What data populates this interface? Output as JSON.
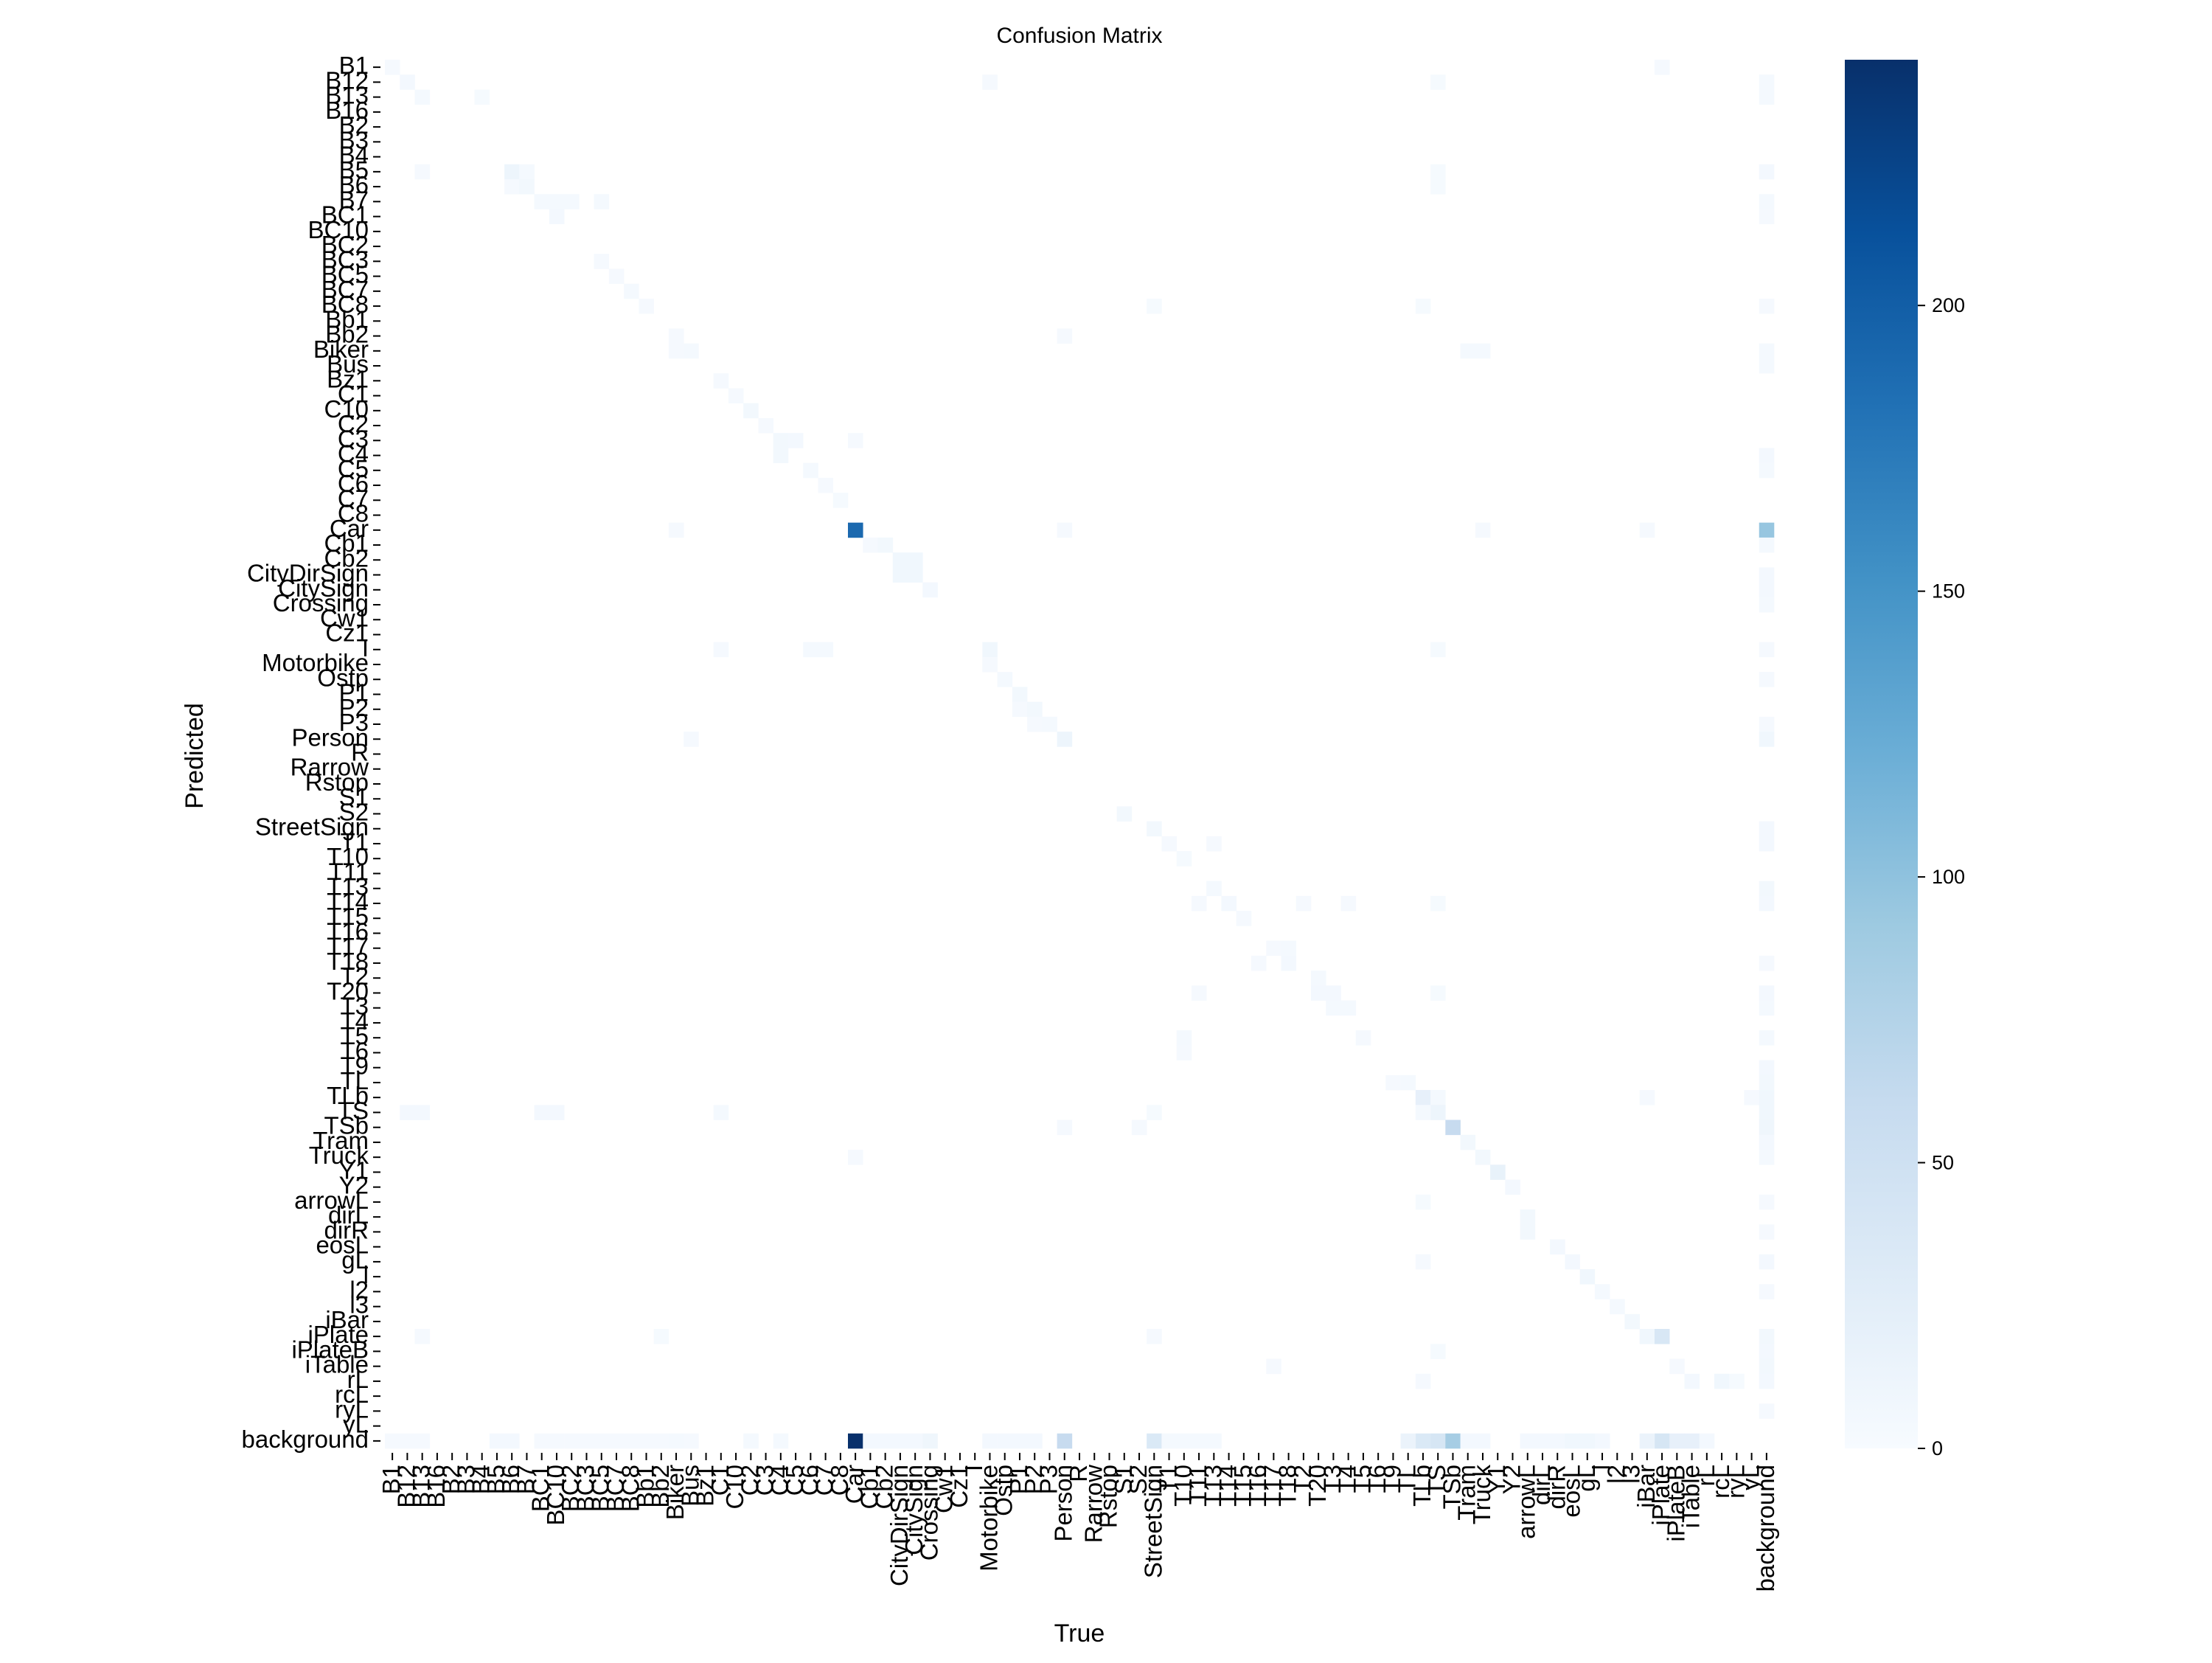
{
  "chart_data": {
    "type": "heatmap",
    "title": "Confusion Matrix",
    "xlabel": "True",
    "ylabel": "Predicted",
    "labels": [
      "B1",
      "B12",
      "B13",
      "B16",
      "B2",
      "B3",
      "B4",
      "B5",
      "B6",
      "B7",
      "BC1",
      "BC10",
      "BC2",
      "BC3",
      "BC5",
      "BC7",
      "BC8",
      "Bb1",
      "Bb2",
      "Biker",
      "Bus",
      "Bz1",
      "C1",
      "C10",
      "C2",
      "C3",
      "C4",
      "C5",
      "C6",
      "C7",
      "C8",
      "Car",
      "Cb1",
      "Cb2",
      "CityDirSign",
      "CitySign",
      "Crossing",
      "Cw1",
      "Cz1",
      "I",
      "Motorbike",
      "Ostp",
      "P1",
      "P2",
      "P3",
      "Person",
      "R",
      "Rarrow",
      "Rstop",
      "S1",
      "S2",
      "StreetSign",
      "T1",
      "T10",
      "T11",
      "T13",
      "T14",
      "T15",
      "T16",
      "T17",
      "T18",
      "T2",
      "T20",
      "T3",
      "T4",
      "T5",
      "T6",
      "T9",
      "TL",
      "TLb",
      "TS",
      "TSb",
      "Tram",
      "Truck",
      "Y1",
      "Y2",
      "arrowL",
      "dirL",
      "dirR",
      "eosL",
      "gL",
      "l",
      "l2",
      "l3",
      "iBar",
      "iPlate",
      "iPlateB",
      "iTable",
      "rL",
      "rcL",
      "ryL",
      "yL",
      "background"
    ],
    "colorbar": {
      "ticks": [
        0,
        50,
        100,
        150,
        200
      ],
      "vmin": 0,
      "vmax": 243
    },
    "colors": {
      "low": "#f7fbff",
      "high": "#08306b"
    },
    "cells": [
      [
        "B1",
        "B1",
        3
      ],
      [
        "B1",
        "iPlate",
        3
      ],
      [
        "B12",
        "B12",
        5
      ],
      [
        "B12",
        "Motorbike",
        3
      ],
      [
        "B12",
        "TS",
        2
      ],
      [
        "B13",
        "B13",
        4
      ],
      [
        "B13",
        "B4",
        2
      ],
      [
        "B5",
        "B13",
        3
      ],
      [
        "B5",
        "B6",
        12
      ],
      [
        "B5",
        "B7",
        4
      ],
      [
        "B5",
        "TS",
        2
      ],
      [
        "B6",
        "B6",
        3
      ],
      [
        "B6",
        "B7",
        6
      ],
      [
        "B6",
        "TS",
        2
      ],
      [
        "B7",
        "BC1",
        4
      ],
      [
        "B7",
        "BC10",
        4
      ],
      [
        "B7",
        "BC2",
        4
      ],
      [
        "B7",
        "BC5",
        4
      ],
      [
        "BC1",
        "BC10",
        5
      ],
      [
        "BC3",
        "BC5",
        3
      ],
      [
        "BC5",
        "BC7",
        3
      ],
      [
        "BC7",
        "BC8",
        4
      ],
      [
        "BC8",
        "Bb1",
        3
      ],
      [
        "BC8",
        "StreetSign",
        2
      ],
      [
        "BC8",
        "TLb",
        2
      ],
      [
        "Bb2",
        "Biker",
        3
      ],
      [
        "Bb2",
        "Person",
        3
      ],
      [
        "Biker",
        "Biker",
        3
      ],
      [
        "Biker",
        "Bus",
        4
      ],
      [
        "Biker",
        "Tram",
        4
      ],
      [
        "Biker",
        "Truck",
        4
      ],
      [
        "Bz1",
        "C1",
        3
      ],
      [
        "C1",
        "C10",
        3
      ],
      [
        "C10",
        "C2",
        6
      ],
      [
        "C2",
        "C3",
        3
      ],
      [
        "C3",
        "C4",
        6
      ],
      [
        "C3",
        "C5",
        5
      ],
      [
        "C3",
        "Car",
        3
      ],
      [
        "C4",
        "C4",
        6
      ],
      [
        "C5",
        "C6",
        4
      ],
      [
        "C6",
        "C7",
        3
      ],
      [
        "C7",
        "C8",
        2
      ],
      [
        "Car",
        "Biker",
        3
      ],
      [
        "Car",
        "Car",
        190
      ],
      [
        "Car",
        "Person",
        3
      ],
      [
        "Car",
        "Truck",
        3
      ],
      [
        "Car",
        "iBar",
        3
      ],
      [
        "Car",
        "background",
        95
      ],
      [
        "Cb1",
        "Cb1",
        3
      ],
      [
        "Cb1",
        "Cb2",
        6
      ],
      [
        "Cb2",
        "CityDirSign",
        8
      ],
      [
        "Cb2",
        "CitySign",
        8
      ],
      [
        "CityDirSign",
        "CityDirSign",
        8
      ],
      [
        "CityDirSign",
        "CitySign",
        8
      ],
      [
        "CitySign",
        "Crossing",
        5
      ],
      [
        "I",
        "C1",
        3
      ],
      [
        "I",
        "C6",
        4
      ],
      [
        "I",
        "C7",
        4
      ],
      [
        "I",
        "Motorbike",
        8
      ],
      [
        "I",
        "TS",
        2
      ],
      [
        "Motorbike",
        "Motorbike",
        3
      ],
      [
        "Ostp",
        "Ostp",
        4
      ],
      [
        "P1",
        "P1",
        6
      ],
      [
        "P2",
        "P1",
        3
      ],
      [
        "P2",
        "P2",
        6
      ],
      [
        "P3",
        "P2",
        3
      ],
      [
        "P3",
        "P3",
        4
      ],
      [
        "Person",
        "Bus",
        3
      ],
      [
        "Person",
        "Person",
        12
      ],
      [
        "S2",
        "S1",
        6
      ],
      [
        "StreetSign",
        "StreetSign",
        6
      ],
      [
        "T1",
        "T1",
        3
      ],
      [
        "T1",
        "T13",
        3
      ],
      [
        "T10",
        "T10",
        2
      ],
      [
        "T13",
        "T13",
        4
      ],
      [
        "T14",
        "T11",
        3
      ],
      [
        "T14",
        "T14",
        5
      ],
      [
        "T14",
        "T2",
        3
      ],
      [
        "T14",
        "T4",
        3
      ],
      [
        "T14",
        "TS",
        2
      ],
      [
        "T15",
        "T15",
        3
      ],
      [
        "T17",
        "T17",
        3
      ],
      [
        "T17",
        "T18",
        4
      ],
      [
        "T18",
        "T16",
        3
      ],
      [
        "T18",
        "T18",
        5
      ],
      [
        "T2",
        "T20",
        4
      ],
      [
        "T20",
        "T11",
        3
      ],
      [
        "T20",
        "T20",
        5
      ],
      [
        "T20",
        "T3",
        5
      ],
      [
        "T20",
        "TS",
        2
      ],
      [
        "T3",
        "T3",
        4
      ],
      [
        "T3",
        "T4",
        4
      ],
      [
        "T5",
        "T10",
        4
      ],
      [
        "T5",
        "T5",
        3
      ],
      [
        "T6",
        "T10",
        3
      ],
      [
        "TL",
        "TL",
        4
      ],
      [
        "TL",
        "T9",
        3
      ],
      [
        "TLb",
        "TLb",
        20
      ],
      [
        "TLb",
        "TS",
        4
      ],
      [
        "TLb",
        "iBar",
        3
      ],
      [
        "TLb",
        "yL",
        3
      ],
      [
        "TS",
        "TS",
        12
      ],
      [
        "TS",
        "TLb",
        4
      ],
      [
        "TS",
        "B12",
        5
      ],
      [
        "TS",
        "B13",
        5
      ],
      [
        "TS",
        "BC1",
        5
      ],
      [
        "TS",
        "BC10",
        5
      ],
      [
        "TS",
        "C1",
        4
      ],
      [
        "TS",
        "StreetSign",
        2
      ],
      [
        "TSb",
        "TSb",
        60
      ],
      [
        "TSb",
        "Person",
        3
      ],
      [
        "TSb",
        "S2",
        3
      ],
      [
        "Tram",
        "Tram",
        6
      ],
      [
        "Truck",
        "Truck",
        6
      ],
      [
        "Truck",
        "Car",
        3
      ],
      [
        "Y1",
        "Y1",
        18
      ],
      [
        "Y2",
        "Y2",
        5
      ],
      [
        "arrowL",
        "TLb",
        2
      ],
      [
        "dirL",
        "arrowL",
        6
      ],
      [
        "dirR",
        "arrowL",
        6
      ],
      [
        "eosL",
        "dirR",
        5
      ],
      [
        "gL",
        "eosL",
        5
      ],
      [
        "gL",
        "TLb",
        3
      ],
      [
        "l",
        "gL",
        8
      ],
      [
        "l2",
        "l",
        4
      ],
      [
        "l3",
        "l2",
        4
      ],
      [
        "iBar",
        "l3",
        6
      ],
      [
        "iPlate",
        "iBar",
        8
      ],
      [
        "iPlate",
        "iPlate",
        38
      ],
      [
        "iPlate",
        "B13",
        3
      ],
      [
        "iPlate",
        "Bb2",
        2
      ],
      [
        "iPlate",
        "StreetSign",
        3
      ],
      [
        "iPlateB",
        "TS",
        2
      ],
      [
        "iTable",
        "T17",
        3
      ],
      [
        "iTable",
        "iPlateB",
        3
      ],
      [
        "rL",
        "TLb",
        3
      ],
      [
        "rL",
        "iTable",
        5
      ],
      [
        "rL",
        "rcL",
        8
      ],
      [
        "rL",
        "ryL",
        2
      ],
      [
        "background",
        "Car",
        243
      ],
      [
        "background",
        "Person",
        60
      ],
      [
        "background",
        "StreetSign",
        35
      ],
      [
        "background",
        "TS",
        40
      ],
      [
        "background",
        "TSb",
        85
      ],
      [
        "background",
        "TLb",
        35
      ],
      [
        "background",
        "TL",
        15
      ],
      [
        "background",
        "iPlate",
        40
      ],
      [
        "background",
        "iPlateB",
        20
      ],
      [
        "background",
        "iTable",
        20
      ],
      [
        "background",
        "B12",
        3
      ],
      [
        "background",
        "B13",
        3
      ],
      [
        "background",
        "B5",
        5
      ],
      [
        "background",
        "B6",
        5
      ],
      [
        "background",
        "Biker",
        4
      ],
      [
        "background",
        "Crossing",
        10
      ],
      [
        "background",
        "CitySign",
        5
      ],
      [
        "background",
        "CityDirSign",
        5
      ],
      [
        "background",
        "Motorbike",
        5
      ],
      [
        "background",
        "Ostp",
        5
      ],
      [
        "background",
        "P1",
        5
      ],
      [
        "background",
        "P2",
        5
      ],
      [
        "background",
        "T1",
        4
      ],
      [
        "background",
        "T10",
        4
      ],
      [
        "background",
        "T11",
        4
      ],
      [
        "background",
        "T13",
        4
      ],
      [
        "background",
        "Tram",
        5
      ],
      [
        "background",
        "Truck",
        5
      ],
      [
        "background",
        "arrowL",
        5
      ],
      [
        "background",
        "dirL",
        5
      ],
      [
        "background",
        "dirR",
        5
      ],
      [
        "background",
        "eosL",
        8
      ],
      [
        "background",
        "gL",
        8
      ],
      [
        "background",
        "l",
        5
      ],
      [
        "background",
        "iBar",
        15
      ],
      [
        "background",
        "rL",
        5
      ],
      [
        "background",
        "Cb1",
        5
      ],
      [
        "background",
        "Cb2",
        5
      ],
      [
        "background",
        "C2",
        4
      ],
      [
        "background",
        "C4",
        4
      ],
      [
        "background",
        "B1",
        3
      ],
      [
        "background",
        "BC1",
        3
      ],
      [
        "background",
        "BC10",
        3
      ],
      [
        "background",
        "BC2",
        3
      ],
      [
        "background",
        "BC3",
        3
      ],
      [
        "background",
        "BC5",
        3
      ],
      [
        "background",
        "BC7",
        3
      ],
      [
        "background",
        "BC8",
        3
      ],
      [
        "background",
        "Bb1",
        3
      ],
      [
        "background",
        "Bb2",
        3
      ],
      [
        "background",
        "Bus",
        3
      ],
      [
        "B12",
        "background",
        4
      ],
      [
        "B13",
        "background",
        4
      ],
      [
        "B5",
        "background",
        5
      ],
      [
        "B7",
        "background",
        4
      ],
      [
        "BC1",
        "background",
        3
      ],
      [
        "BC8",
        "background",
        3
      ],
      [
        "Biker",
        "background",
        4
      ],
      [
        "Bus",
        "background",
        4
      ],
      [
        "C4",
        "background",
        5
      ],
      [
        "C5",
        "background",
        4
      ],
      [
        "Cb1",
        "background",
        4
      ],
      [
        "CityDirSign",
        "background",
        5
      ],
      [
        "CitySign",
        "background",
        5
      ],
      [
        "Crossing",
        "background",
        4
      ],
      [
        "I",
        "background",
        3
      ],
      [
        "Ostp",
        "background",
        3
      ],
      [
        "P3",
        "background",
        3
      ],
      [
        "Person",
        "background",
        8
      ],
      [
        "StreetSign",
        "background",
        5
      ],
      [
        "T1",
        "background",
        5
      ],
      [
        "T13",
        "background",
        6
      ],
      [
        "T14",
        "background",
        5
      ],
      [
        "T18",
        "background",
        3
      ],
      [
        "T20",
        "background",
        5
      ],
      [
        "T3",
        "background",
        4
      ],
      [
        "T5",
        "background",
        4
      ],
      [
        "T9",
        "background",
        5
      ],
      [
        "TL",
        "background",
        6
      ],
      [
        "TLb",
        "background",
        8
      ],
      [
        "TS",
        "background",
        8
      ],
      [
        "TSb",
        "background",
        10
      ],
      [
        "Tram",
        "background",
        5
      ],
      [
        "Truck",
        "background",
        4
      ],
      [
        "arrowL",
        "background",
        3
      ],
      [
        "dirR",
        "background",
        3
      ],
      [
        "gL",
        "background",
        5
      ],
      [
        "l2",
        "background",
        3
      ],
      [
        "iPlate",
        "background",
        6
      ],
      [
        "iPlateB",
        "background",
        5
      ],
      [
        "iTable",
        "background",
        6
      ],
      [
        "rL",
        "background",
        5
      ],
      [
        "ryL",
        "background",
        3
      ]
    ]
  }
}
